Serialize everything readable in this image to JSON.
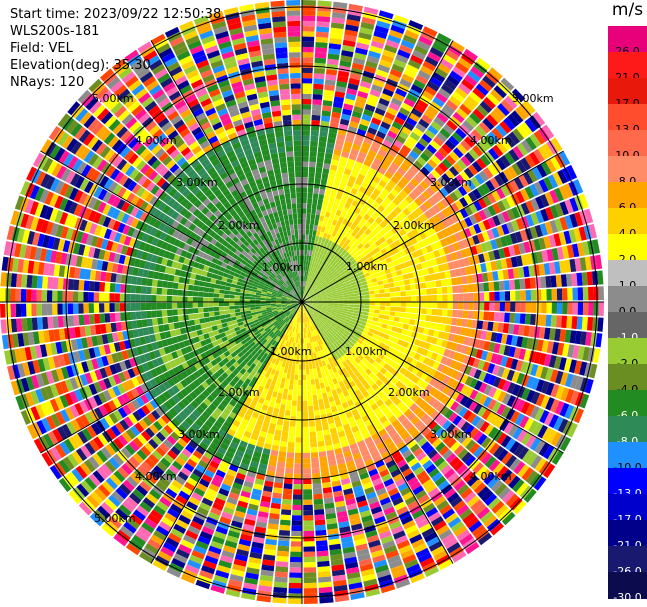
{
  "header": {
    "start_time": "Start time: 2023/09/22 12:50:38",
    "instrument": "WLS200s-181",
    "field": "Field: VEL",
    "elevation": "Elevation(deg): 35.30",
    "nrays": "NRays: 120"
  },
  "range_rings": {
    "ring_1": "1.00km",
    "ring_2": "2.00km",
    "ring_3": "3.00km",
    "ring_4": "4.00km",
    "ring_5": "5.00km"
  },
  "colorbar": {
    "title": "m/s",
    "levels": [
      {
        "label": "26.0",
        "color": "#e8007a",
        "text_color": "#000000"
      },
      {
        "label": "21.0",
        "color": "#ff1a1a",
        "text_color": "#000000"
      },
      {
        "label": "17.0",
        "color": "#e8190b",
        "text_color": "#000000"
      },
      {
        "label": "13.0",
        "color": "#ff4d2e",
        "text_color": "#000000"
      },
      {
        "label": "10.0",
        "color": "#ff6a4d",
        "text_color": "#000000"
      },
      {
        "label": "8.0",
        "color": "#ff8c66",
        "text_color": "#000000"
      },
      {
        "label": "6.0",
        "color": "#ffa500",
        "text_color": "#000000"
      },
      {
        "label": "4.0",
        "color": "#ffd000",
        "text_color": "#000000"
      },
      {
        "label": "2.0",
        "color": "#ffff00",
        "text_color": "#000000"
      },
      {
        "label": "1.0",
        "color": "#bfbfbf",
        "text_color": "#000000"
      },
      {
        "label": "0.0",
        "color": "#8c8c8c",
        "text_color": "#000000"
      },
      {
        "label": "-1.0",
        "color": "#666666",
        "text_color": "#ffffff"
      },
      {
        "label": "-2.0",
        "color": "#99cc33",
        "text_color": "#000000"
      },
      {
        "label": "-4.0",
        "color": "#6b8e23",
        "text_color": "#000000"
      },
      {
        "label": "-6.0",
        "color": "#228b22",
        "text_color": "#ffffff"
      },
      {
        "label": "-8.0",
        "color": "#2e8b57",
        "text_color": "#ffffff"
      },
      {
        "label": "-10.0",
        "color": "#1e90ff",
        "text_color": "#000000"
      },
      {
        "label": "-13.0",
        "color": "#0000ff",
        "text_color": "#ffffff"
      },
      {
        "label": "-17.0",
        "color": "#0000cd",
        "text_color": "#ffffff"
      },
      {
        "label": "-21.0",
        "color": "#00008b",
        "text_color": "#ffffff"
      },
      {
        "label": "-26.0",
        "color": "#191970",
        "text_color": "#ffffff"
      },
      {
        "label": "-30.0",
        "color": "#0b0b4d",
        "text_color": "#ffffff"
      }
    ]
  }
}
